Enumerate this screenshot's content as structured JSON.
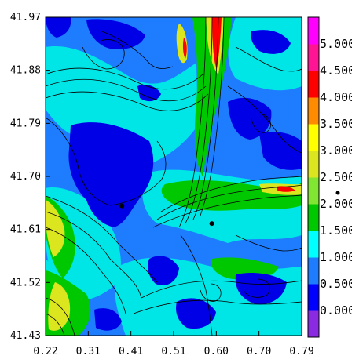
{
  "chart_data": {
    "type": "heatmap",
    "title": "",
    "xlabel": "",
    "ylabel": "",
    "x_ticks": [
      "0.22",
      "0.31",
      "0.41",
      "0.51",
      "0.60",
      "0.70",
      "0.79"
    ],
    "y_ticks": [
      "41.97",
      "41.88",
      "41.79",
      "41.70",
      "41.61",
      "41.52",
      "41.43"
    ],
    "xlim": [
      0.22,
      0.79
    ],
    "ylim": [
      41.43,
      41.97
    ],
    "overlay": "streamlines",
    "markers": [
      {
        "x": 0.39,
        "y": 41.65
      },
      {
        "x": 0.59,
        "y": 41.62
      }
    ],
    "colorbar": {
      "labels": [
        "0.000",
        "0.500",
        "1.000",
        "1.500",
        "2.000",
        "2.500",
        "3.000",
        "3.500",
        "4.000",
        "4.500",
        "5.000"
      ],
      "levels": [
        0,
        0.5,
        1.0,
        1.5,
        2.0,
        2.5,
        3.0,
        3.5,
        4.0,
        4.5,
        5.0
      ],
      "colors": [
        "#8a2be2",
        "#0000ff",
        "#1e7dff",
        "#00ffff",
        "#00c800",
        "#80e632",
        "#dce61e",
        "#ffff00",
        "#ff8c00",
        "#ff0000",
        "#ff1493",
        "#ff00ff"
      ]
    },
    "field_colors": {
      "low": "#0000e6",
      "mid_low": "#1e7dff",
      "mid": "#00e6e6",
      "mid_high": "#00c800",
      "high": "#dce61e",
      "peak": "#ff0000"
    }
  }
}
